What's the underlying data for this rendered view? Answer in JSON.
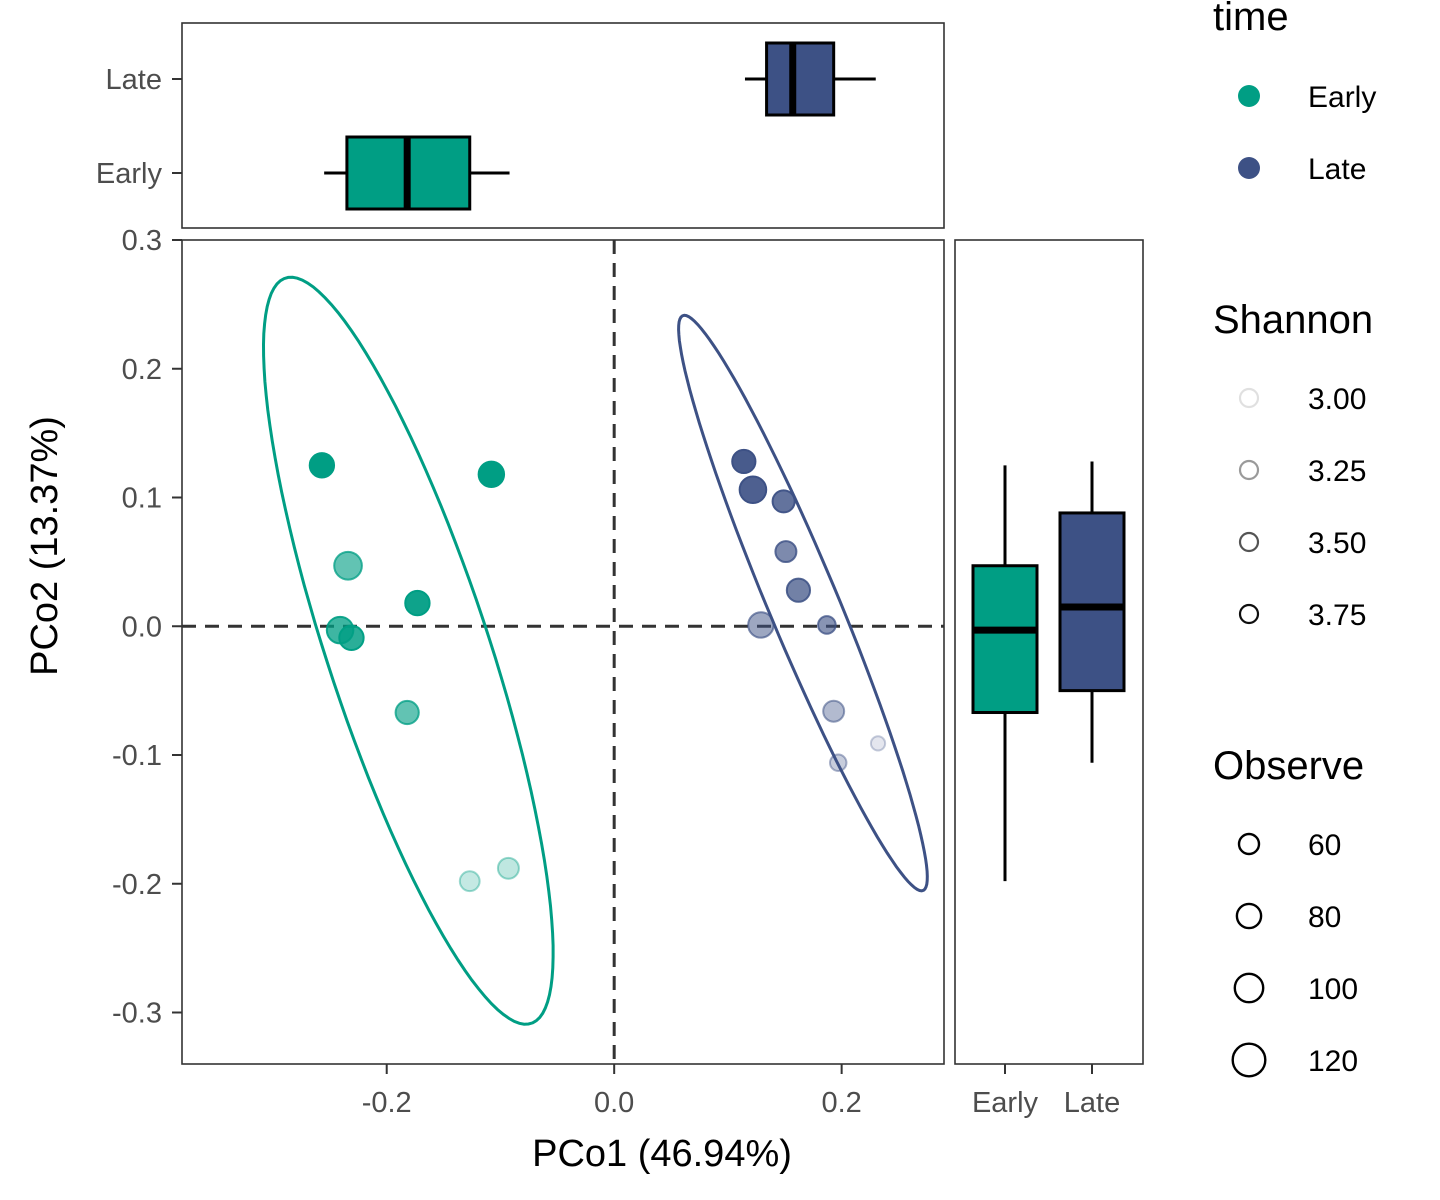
{
  "chart_data": [
    {
      "type": "scatter",
      "xlabel": "PCo1 (46.94%)",
      "ylabel": "PCo2 (13.37%)",
      "xlim": [
        -0.38,
        0.29
      ],
      "ylim": [
        -0.34,
        0.3
      ],
      "x_ticks": [
        "-0.2",
        "0.0",
        "0.2"
      ],
      "y_ticks": [
        "0.3",
        "0.2",
        "0.1",
        "0.0",
        "-0.1",
        "-0.2",
        "-0.3"
      ],
      "reference_lines": {
        "x": 0,
        "y": 0,
        "style": "dashed"
      },
      "colors": {
        "Early": "#009E84",
        "Late": "#3D5185"
      },
      "series": [
        {
          "name": "Early",
          "points": [
            {
              "x": -0.257,
              "y": 0.125,
              "shannon": 3.9,
              "observe": 95
            },
            {
              "x": -0.108,
              "y": 0.118,
              "shannon": 3.88,
              "observe": 100
            },
            {
              "x": -0.234,
              "y": 0.047,
              "shannon": 3.45,
              "observe": 110
            },
            {
              "x": -0.173,
              "y": 0.018,
              "shannon": 3.75,
              "observe": 95
            },
            {
              "x": -0.241,
              "y": -0.003,
              "shannon": 3.58,
              "observe": 105
            },
            {
              "x": -0.231,
              "y": -0.009,
              "shannon": 3.65,
              "observe": 95
            },
            {
              "x": -0.182,
              "y": -0.067,
              "shannon": 3.45,
              "observe": 90
            },
            {
              "x": -0.127,
              "y": -0.198,
              "shannon": 3.1,
              "observe": 75
            },
            {
              "x": -0.093,
              "y": -0.188,
              "shannon": 3.12,
              "observe": 80
            }
          ],
          "ellipse": {
            "cx": -0.181,
            "cy": -0.019,
            "angle_deg": -69.3,
            "semi_major": 0.309,
            "semi_minor": 0.07
          }
        },
        {
          "name": "Late",
          "points": [
            {
              "x": 0.114,
              "y": 0.128,
              "shannon": 3.75,
              "observe": 90
            },
            {
              "x": 0.122,
              "y": 0.106,
              "shannon": 3.72,
              "observe": 105
            },
            {
              "x": 0.149,
              "y": 0.097,
              "shannon": 3.62,
              "observe": 85
            },
            {
              "x": 0.151,
              "y": 0.058,
              "shannon": 3.5,
              "observe": 80
            },
            {
              "x": 0.162,
              "y": 0.028,
              "shannon": 3.55,
              "observe": 90
            },
            {
              "x": 0.129,
              "y": 0.001,
              "shannon": 3.35,
              "observe": 100
            },
            {
              "x": 0.187,
              "y": 0.001,
              "shannon": 3.45,
              "observe": 65
            },
            {
              "x": 0.193,
              "y": -0.066,
              "shannon": 3.25,
              "observe": 80
            },
            {
              "x": 0.197,
              "y": -0.106,
              "shannon": 3.15,
              "observe": 60
            },
            {
              "x": 0.232,
              "y": -0.091,
              "shannon": 3.02,
              "observe": 50
            }
          ],
          "ellipse": {
            "cx": 0.166,
            "cy": 0.018,
            "angle_deg": -64.6,
            "semi_major": 0.247,
            "semi_minor": 0.03
          }
        }
      ]
    },
    {
      "type": "boxplot",
      "orientation": "horizontal",
      "xlim": [
        -0.38,
        0.29
      ],
      "categories": [
        "Early",
        "Late"
      ],
      "boxes": [
        {
          "name": "Early",
          "min": -0.255,
          "q1": -0.235,
          "median": -0.182,
          "q3": -0.127,
          "max": -0.092
        },
        {
          "name": "Late",
          "min": 0.115,
          "q1": 0.134,
          "median": 0.157,
          "q3": 0.193,
          "max": 0.23
        }
      ]
    },
    {
      "type": "boxplot",
      "orientation": "vertical",
      "ylim": [
        -0.34,
        0.3
      ],
      "categories": [
        "Early",
        "Late"
      ],
      "boxes": [
        {
          "name": "Early",
          "min": -0.198,
          "q1": -0.067,
          "median": -0.003,
          "q3": 0.047,
          "max": 0.125
        },
        {
          "name": "Late",
          "min": -0.106,
          "q1": -0.05,
          "median": 0.015,
          "q3": 0.088,
          "max": 0.128
        }
      ]
    }
  ],
  "legend": {
    "time": {
      "title": "time",
      "items": [
        {
          "label": "Early",
          "color": "#009E84"
        },
        {
          "label": "Late",
          "color": "#3D5185"
        }
      ]
    },
    "shannon": {
      "title": "Shannon",
      "items": [
        {
          "label": "3.00",
          "value": 3.0
        },
        {
          "label": "3.25",
          "value": 3.25
        },
        {
          "label": "3.50",
          "value": 3.5
        },
        {
          "label": "3.75",
          "value": 3.75
        }
      ]
    },
    "observe": {
      "title": "Observe",
      "items": [
        {
          "label": "60",
          "value": 60
        },
        {
          "label": "80",
          "value": 80
        },
        {
          "label": "100",
          "value": 100
        },
        {
          "label": "120",
          "value": 120
        }
      ]
    }
  }
}
